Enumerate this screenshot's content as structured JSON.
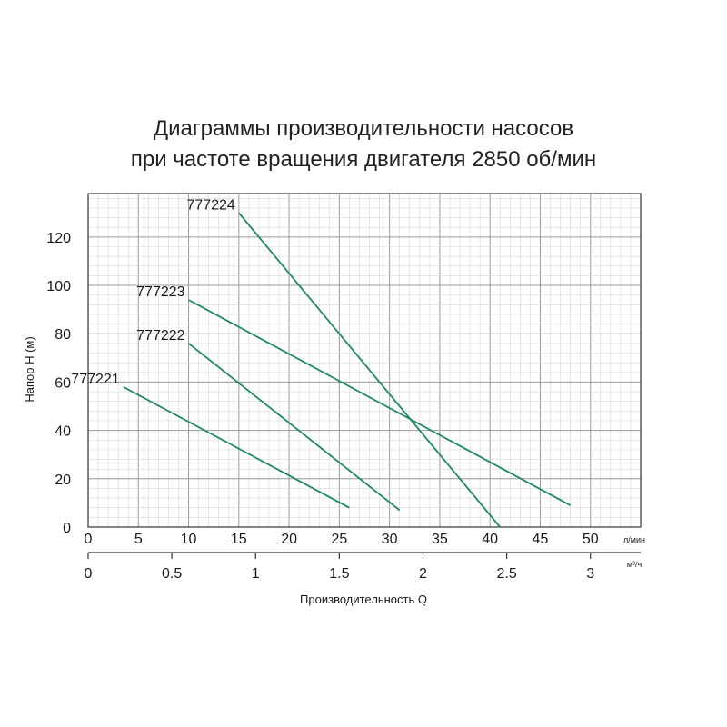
{
  "chart_data": {
    "type": "line",
    "title": "Диаграммы производительности насосов",
    "subtitle": "при частоте вращения двигателя 2850 об/мин",
    "ylabel": "Напор Н (м)",
    "xlabel": "Производительность  Q",
    "x_unit_primary": "л/мин",
    "x_unit_secondary": "м³/ч",
    "xlim": [
      0,
      55
    ],
    "ylim": [
      0,
      138
    ],
    "x_ticks": [
      0,
      5,
      10,
      15,
      20,
      25,
      30,
      35,
      40,
      45,
      50
    ],
    "x_ticks_secondary": [
      {
        "label": "0",
        "value": 0
      },
      {
        "label": "0.5",
        "value": 0.5
      },
      {
        "label": "1",
        "value": 1
      },
      {
        "label": "1.5",
        "value": 1.5
      },
      {
        "label": "2",
        "value": 2
      },
      {
        "label": "2.5",
        "value": 2.5
      },
      {
        "label": "3",
        "value": 3
      }
    ],
    "y_ticks": [
      0,
      20,
      40,
      60,
      80,
      100,
      120
    ],
    "grid": true,
    "line_color": "#1f8a5e",
    "series": [
      {
        "name": "777221",
        "x": [
          3.5,
          26
        ],
        "y": [
          58,
          8
        ]
      },
      {
        "name": "777222",
        "x": [
          10,
          31
        ],
        "y": [
          76,
          7
        ]
      },
      {
        "name": "777223",
        "x": [
          10,
          48
        ],
        "y": [
          94,
          9
        ]
      },
      {
        "name": "777224",
        "x": [
          15,
          41
        ],
        "y": [
          130,
          0
        ]
      }
    ]
  }
}
